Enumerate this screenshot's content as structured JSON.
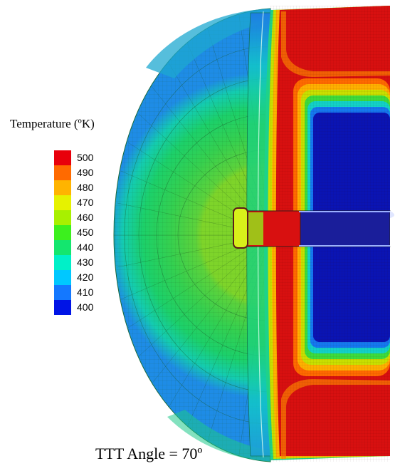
{
  "legend": {
    "title": "Temperature (ºK)",
    "levels": [
      {
        "label": "500",
        "color": "#e8000b"
      },
      {
        "label": "490",
        "color": "#ff6a00"
      },
      {
        "label": "480",
        "color": "#ffb400"
      },
      {
        "label": "470",
        "color": "#e6f200"
      },
      {
        "label": "460",
        "color": "#a8f000"
      },
      {
        "label": "450",
        "color": "#3cf01e"
      },
      {
        "label": "440",
        "color": "#14e66e"
      },
      {
        "label": "430",
        "color": "#00f0c8"
      },
      {
        "label": "420",
        "color": "#00c8ff"
      },
      {
        "label": "410",
        "color": "#1478ff"
      },
      {
        "label": "400",
        "color": "#0014e6"
      }
    ]
  },
  "caption": "TTT Angle = 70º",
  "colors": {
    "outer_blue": "#1e78e6",
    "outer_cyan": "#12d2c8",
    "dome_green": "#22d05a",
    "inner_green": "#7ed42a",
    "hot_red": "#d21414",
    "core_blue": "#0a14a0",
    "mesh_line": "#2a6a2a"
  }
}
